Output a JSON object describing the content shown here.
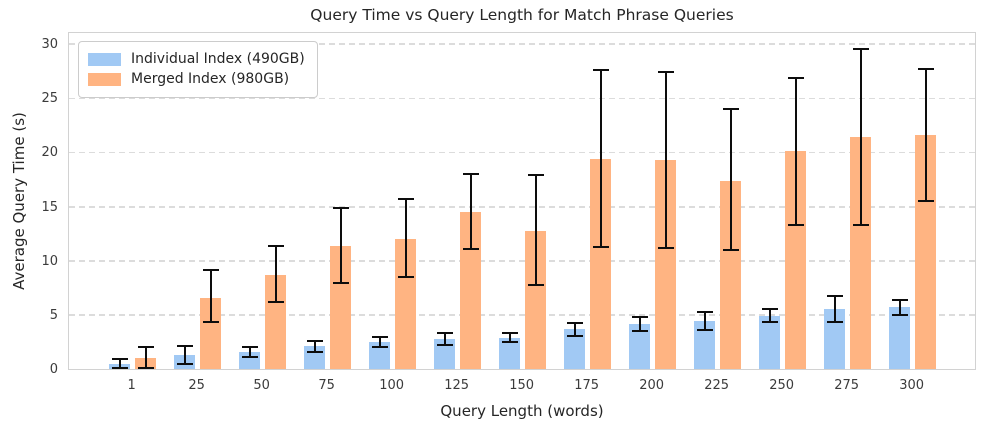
{
  "chart_data": {
    "type": "bar",
    "title": "Query Time vs Query Length for Match Phrase Queries",
    "xlabel": "Query Length (words)",
    "ylabel": "Average Query Time (s)",
    "categories": [
      "1",
      "25",
      "50",
      "75",
      "100",
      "125",
      "150",
      "175",
      "200",
      "225",
      "250",
      "275",
      "300"
    ],
    "series": [
      {
        "name": "Individual Index (490GB)",
        "color": "#a1c9f4",
        "values": [
          0.5,
          1.3,
          1.55,
          2.1,
          2.5,
          2.75,
          2.9,
          3.65,
          4.15,
          4.45,
          4.9,
          5.5,
          5.7
        ],
        "err_low": [
          0.1,
          0.45,
          1.1,
          1.6,
          2.0,
          2.2,
          2.45,
          3.05,
          3.5,
          3.6,
          4.3,
          4.3,
          5.0
        ],
        "err_high": [
          0.9,
          2.15,
          2.0,
          2.6,
          3.0,
          3.3,
          3.35,
          4.25,
          4.8,
          5.3,
          5.5,
          6.7,
          6.4
        ]
      },
      {
        "name": "Merged Index (980GB)",
        "color": "#ffb482",
        "values": [
          1.0,
          6.6,
          8.7,
          11.4,
          12.0,
          14.5,
          12.75,
          19.4,
          19.3,
          17.4,
          20.1,
          21.4,
          21.6
        ],
        "err_low": [
          0.05,
          4.3,
          6.2,
          7.9,
          8.5,
          11.1,
          7.8,
          11.3,
          11.2,
          11.0,
          13.3,
          13.3,
          15.5
        ],
        "err_high": [
          2.05,
          9.1,
          11.4,
          14.9,
          15.7,
          18.0,
          17.9,
          27.6,
          27.4,
          24.0,
          26.9,
          29.5,
          27.7
        ]
      }
    ],
    "ylim": [
      0,
      31.2
    ],
    "yticks": [
      0,
      5,
      10,
      15,
      20,
      25,
      30
    ],
    "grid": "horizontal dashed",
    "legend_position": "upper left",
    "errorbar_color": "#0d0d0d",
    "spine_color": "#d2d2d2",
    "grid_color": "#dcdcdc",
    "background": "#ffffff"
  }
}
